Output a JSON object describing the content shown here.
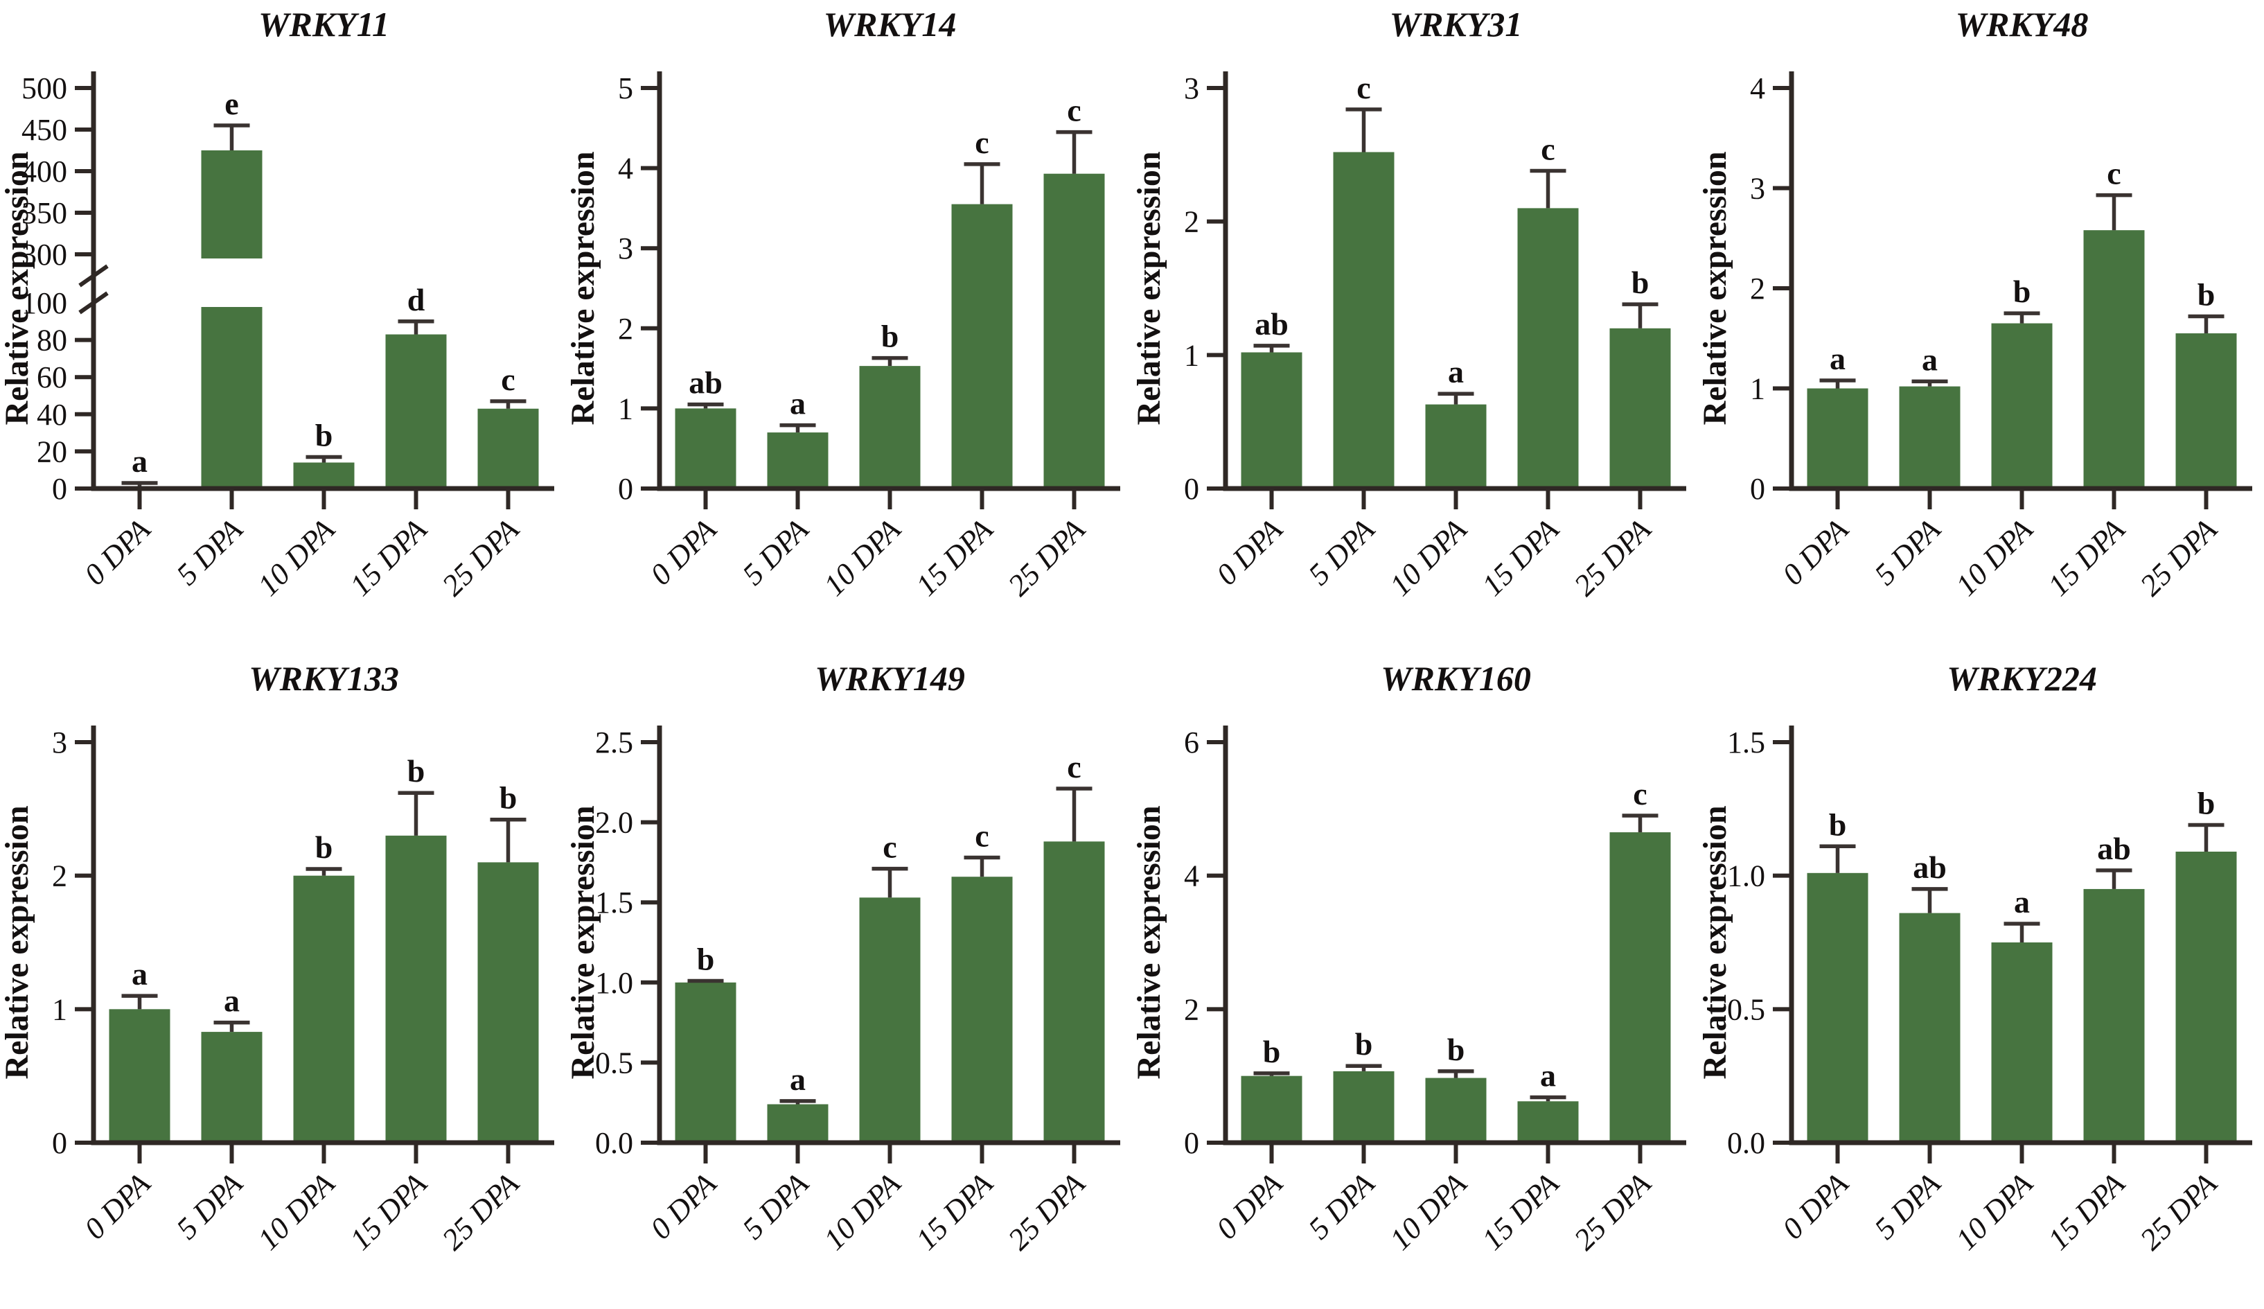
{
  "figure": {
    "background": "#ffffff",
    "bar_color": "#477440",
    "axis_color": "#2f2825",
    "error_bar_color": "#3a3331",
    "text_color": "#131010",
    "ylabel": "Relative expression",
    "categories": [
      "0 DPA",
      "5 DPA",
      "10 DPA",
      "15 DPA",
      "25 DPA"
    ]
  },
  "chart_data": [
    {
      "type": "bar",
      "title": "WRKY11",
      "ylabel": "Relative expression",
      "categories": [
        "0 DPA",
        "5 DPA",
        "10 DPA",
        "15 DPA",
        "25 DPA"
      ],
      "values": [
        1,
        425,
        14,
        83,
        43
      ],
      "errors": [
        2,
        30,
        3,
        7,
        4
      ],
      "letters": [
        "a",
        "e",
        "b",
        "d",
        "c"
      ],
      "yticks": [
        0,
        20,
        40,
        60,
        80,
        300,
        350,
        400,
        450,
        500
      ],
      "ytick_labels": [
        "0",
        "20",
        "40",
        "60",
        "80",
        "300",
        "350",
        "400",
        "450",
        "500"
      ],
      "extra_labels": [
        {
          "value": 100,
          "label": "100"
        }
      ],
      "ylim": [
        0,
        500
      ],
      "axis_break": {
        "lower_max": 100,
        "upper_min": 300
      },
      "grid": false,
      "legend": false
    },
    {
      "type": "bar",
      "title": "WRKY14",
      "ylabel": "Relative expression",
      "categories": [
        "0 DPA",
        "5 DPA",
        "10 DPA",
        "15 DPA",
        "25 DPA"
      ],
      "values": [
        1.0,
        0.7,
        1.53,
        3.55,
        3.93
      ],
      "errors": [
        0.05,
        0.09,
        0.1,
        0.5,
        0.52
      ],
      "letters": [
        "ab",
        "a",
        "b",
        "c",
        "c"
      ],
      "yticks": [
        0,
        1,
        2,
        3,
        4,
        5
      ],
      "ytick_labels": [
        "0",
        "1",
        "2",
        "3",
        "4",
        "5"
      ],
      "ylim": [
        0,
        5
      ],
      "grid": false,
      "legend": false
    },
    {
      "type": "bar",
      "title": "WRKY31",
      "ylabel": "Relative expression",
      "categories": [
        "0 DPA",
        "5 DPA",
        "10 DPA",
        "15 DPA",
        "25 DPA"
      ],
      "values": [
        1.02,
        2.52,
        0.63,
        2.1,
        1.2
      ],
      "errors": [
        0.05,
        0.32,
        0.08,
        0.28,
        0.18
      ],
      "letters": [
        "ab",
        "c",
        "a",
        "c",
        "b"
      ],
      "yticks": [
        0,
        1,
        2,
        3
      ],
      "ytick_labels": [
        "0",
        "1",
        "2",
        "3"
      ],
      "ylim": [
        0,
        3
      ],
      "grid": false,
      "legend": false
    },
    {
      "type": "bar",
      "title": "WRKY48",
      "ylabel": "Relative expression",
      "categories": [
        "0 DPA",
        "5 DPA",
        "10 DPA",
        "15 DPA",
        "25 DPA"
      ],
      "values": [
        1.0,
        1.02,
        1.65,
        2.58,
        1.55
      ],
      "errors": [
        0.08,
        0.05,
        0.1,
        0.35,
        0.17
      ],
      "letters": [
        "a",
        "a",
        "b",
        "c",
        "b"
      ],
      "yticks": [
        0,
        1,
        2,
        3,
        4
      ],
      "ytick_labels": [
        "0",
        "1",
        "2",
        "3",
        "4"
      ],
      "ylim": [
        0,
        4
      ],
      "grid": false,
      "legend": false
    },
    {
      "type": "bar",
      "title": "WRKY133",
      "ylabel": "Relative expression",
      "categories": [
        "0 DPA",
        "5 DPA",
        "10 DPA",
        "15 DPA",
        "25 DPA"
      ],
      "values": [
        1.0,
        0.83,
        2.0,
        2.3,
        2.1
      ],
      "errors": [
        0.1,
        0.07,
        0.05,
        0.32,
        0.32
      ],
      "letters": [
        "a",
        "a",
        "b",
        "b",
        "b"
      ],
      "yticks": [
        0,
        1,
        2,
        3
      ],
      "ytick_labels": [
        "0",
        "1",
        "2",
        "3"
      ],
      "ylim": [
        0,
        3
      ],
      "grid": false,
      "legend": false
    },
    {
      "type": "bar",
      "title": "WRKY149",
      "ylabel": "Relative expression",
      "categories": [
        "0 DPA",
        "5 DPA",
        "10 DPA",
        "15 DPA",
        "25 DPA"
      ],
      "values": [
        1.0,
        0.24,
        1.53,
        1.66,
        1.88
      ],
      "errors": [
        0.01,
        0.02,
        0.18,
        0.12,
        0.33
      ],
      "letters": [
        "b",
        "a",
        "c",
        "c",
        "c"
      ],
      "yticks": [
        0,
        0.5,
        1.0,
        1.5,
        2.0,
        2.5
      ],
      "ytick_labels": [
        "0.0",
        "0.5",
        "1.0",
        "1.5",
        "2.0",
        "2.5"
      ],
      "ylim": [
        0,
        2.5
      ],
      "grid": false,
      "legend": false
    },
    {
      "type": "bar",
      "title": "WRKY160",
      "ylabel": "Relative expression",
      "categories": [
        "0 DPA",
        "5 DPA",
        "10 DPA",
        "15 DPA",
        "25 DPA"
      ],
      "values": [
        1.0,
        1.07,
        0.97,
        0.62,
        4.65
      ],
      "errors": [
        0.04,
        0.08,
        0.1,
        0.06,
        0.25
      ],
      "letters": [
        "b",
        "b",
        "b",
        "a",
        "c"
      ],
      "yticks": [
        0,
        2,
        4,
        6
      ],
      "ytick_labels": [
        "0",
        "2",
        "4",
        "6"
      ],
      "ylim": [
        0,
        6
      ],
      "grid": false,
      "legend": false
    },
    {
      "type": "bar",
      "title": "WRKY224",
      "ylabel": "Relative expression",
      "categories": [
        "0 DPA",
        "5 DPA",
        "10 DPA",
        "15 DPA",
        "25 DPA"
      ],
      "values": [
        1.01,
        0.86,
        0.75,
        0.95,
        1.09
      ],
      "errors": [
        0.1,
        0.09,
        0.07,
        0.07,
        0.1
      ],
      "letters": [
        "b",
        "ab",
        "a",
        "ab",
        "b"
      ],
      "yticks": [
        0,
        0.5,
        1.0,
        1.5
      ],
      "ytick_labels": [
        "0.0",
        "0.5",
        "1.0",
        "1.5"
      ],
      "ylim": [
        0,
        1.5
      ],
      "grid": false,
      "legend": false
    }
  ]
}
